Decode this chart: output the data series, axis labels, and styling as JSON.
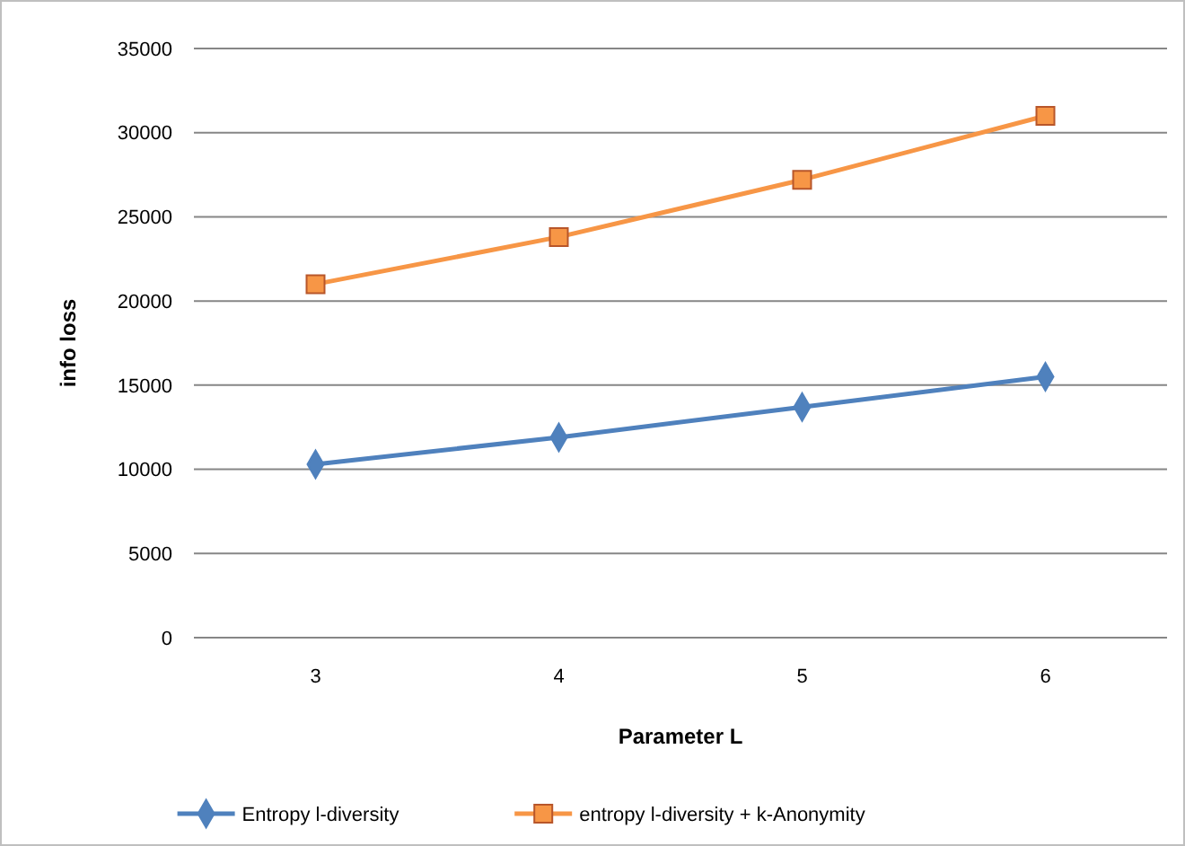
{
  "chart_data": {
    "type": "line",
    "xlabel": "Parameter L",
    "ylabel": "info loss",
    "categories": [
      "3",
      "4",
      "5",
      "6"
    ],
    "series": [
      {
        "name": "Entropy l-diversity",
        "color": "#4f81bd",
        "marker": "diamond",
        "values": [
          10300,
          11900,
          13700,
          15500
        ]
      },
      {
        "name": "entropy l-diversity + k-Anonymity",
        "color": "#f79646",
        "marker": "square",
        "values": [
          21000,
          23800,
          27200,
          31000
        ]
      }
    ],
    "ylim": [
      0,
      35000
    ],
    "yticks": [
      0,
      5000,
      10000,
      15000,
      20000,
      25000,
      30000,
      35000
    ],
    "grid": "y",
    "legend": "bottom"
  }
}
